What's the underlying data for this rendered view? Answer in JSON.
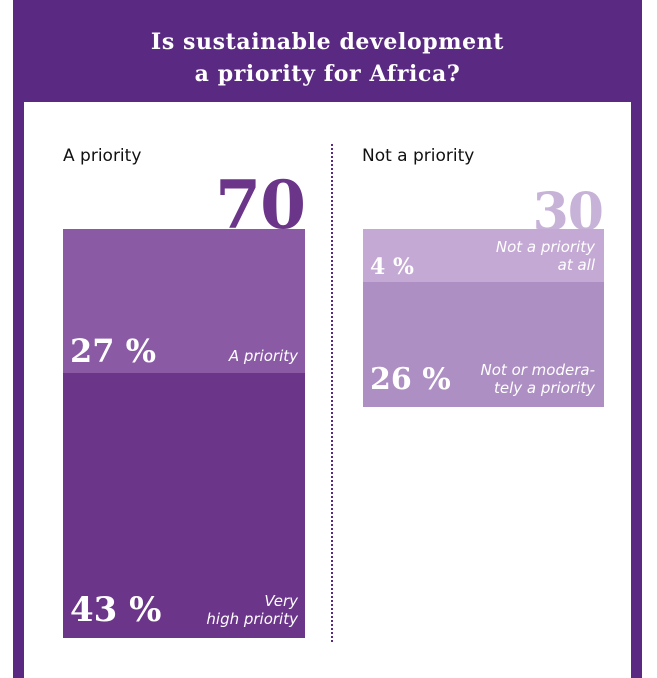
{
  "title": {
    "line1": "Is sustainable development",
    "line2": "a priority for Africa?"
  },
  "colors": {
    "frame": "#5a2a82",
    "priority_light": "#8a5aa5",
    "priority_dark": "#6b3589",
    "not_light": "#c3a9d3",
    "not_dark": "#ad8fc3",
    "total_not": "#c8b3d8"
  },
  "chart_data": {
    "type": "bar",
    "stacked": true,
    "categories": [
      "A priority",
      "Not a priority"
    ],
    "totals": [
      "70 %",
      "30 %"
    ],
    "series": [
      {
        "group": "A priority",
        "segments": [
          {
            "label_lines": [
              "Very",
              "high priority"
            ],
            "value": 43,
            "display": "43 %"
          },
          {
            "label_lines": [
              "A priority"
            ],
            "value": 27,
            "display": "27 %"
          }
        ]
      },
      {
        "group": "Not a priority",
        "segments": [
          {
            "label_lines": [
              "Not or modera-",
              "tely a priority"
            ],
            "value": 26,
            "display": "26 %"
          },
          {
            "label_lines": [
              "Not a priority",
              "at all"
            ],
            "value": 4,
            "display": "4 %"
          }
        ]
      }
    ]
  }
}
